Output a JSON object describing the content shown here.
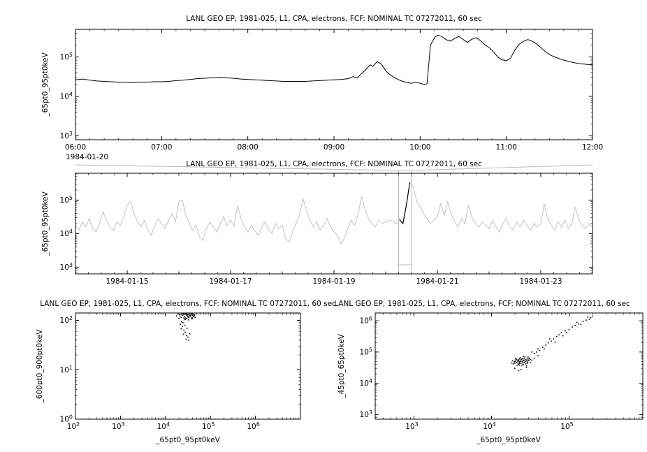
{
  "app": {
    "background": "#ffffff",
    "axis_color": "#000000",
    "context_frame_color": "#b9b9b9"
  },
  "chart_data": [
    {
      "type": "line",
      "title": "LANL GEO EP, 1981-025, L1, CPA, electrons, FCF: NOMINAL TC 07272011, 60 sec",
      "ylabel": "_65pt0_95pt0keV",
      "x_context_label": "1984-01-20",
      "x_unit": "time of day (hours)",
      "y_scale": "log10",
      "xlim": [
        6,
        12
      ],
      "ylim_log10": [
        2.9,
        5.7
      ],
      "x_ticks": {
        "values": [
          6,
          7,
          8,
          9,
          10,
          11,
          12
        ],
        "labels": [
          "06:00",
          "07:00",
          "08:00",
          "09:00",
          "10:00",
          "11:00",
          "12:00"
        ]
      },
      "x_minor_step": 0.1666667,
      "y_tick_exponents": [
        3,
        4,
        5
      ],
      "line_color": "#000000",
      "points": [
        [
          6.0,
          4.42
        ],
        [
          6.08,
          4.44
        ],
        [
          6.17,
          4.41
        ],
        [
          6.25,
          4.39
        ],
        [
          6.33,
          4.38
        ],
        [
          6.42,
          4.37
        ],
        [
          6.5,
          4.36
        ],
        [
          6.58,
          4.36
        ],
        [
          6.67,
          4.35
        ],
        [
          6.75,
          4.36
        ],
        [
          6.83,
          4.36
        ],
        [
          6.92,
          4.37
        ],
        [
          7.0,
          4.37
        ],
        [
          7.08,
          4.38
        ],
        [
          7.17,
          4.4
        ],
        [
          7.25,
          4.41
        ],
        [
          7.33,
          4.43
        ],
        [
          7.42,
          4.45
        ],
        [
          7.5,
          4.46
        ],
        [
          7.58,
          4.47
        ],
        [
          7.67,
          4.48
        ],
        [
          7.75,
          4.47
        ],
        [
          7.83,
          4.46
        ],
        [
          7.92,
          4.44
        ],
        [
          8.0,
          4.43
        ],
        [
          8.08,
          4.42
        ],
        [
          8.17,
          4.41
        ],
        [
          8.25,
          4.4
        ],
        [
          8.33,
          4.39
        ],
        [
          8.42,
          4.38
        ],
        [
          8.5,
          4.38
        ],
        [
          8.58,
          4.38
        ],
        [
          8.67,
          4.38
        ],
        [
          8.75,
          4.39
        ],
        [
          8.83,
          4.4
        ],
        [
          8.92,
          4.41
        ],
        [
          9.0,
          4.42
        ],
        [
          9.08,
          4.43
        ],
        [
          9.17,
          4.45
        ],
        [
          9.22,
          4.5
        ],
        [
          9.27,
          4.47
        ],
        [
          9.32,
          4.58
        ],
        [
          9.37,
          4.68
        ],
        [
          9.42,
          4.8
        ],
        [
          9.45,
          4.76
        ],
        [
          9.5,
          4.88
        ],
        [
          9.55,
          4.82
        ],
        [
          9.6,
          4.65
        ],
        [
          9.65,
          4.55
        ],
        [
          9.7,
          4.48
        ],
        [
          9.75,
          4.42
        ],
        [
          9.8,
          4.38
        ],
        [
          9.85,
          4.35
        ],
        [
          9.9,
          4.33
        ],
        [
          9.95,
          4.36
        ],
        [
          10.0,
          4.33
        ],
        [
          10.05,
          4.3
        ],
        [
          10.08,
          4.32
        ],
        [
          10.12,
          5.3
        ],
        [
          10.17,
          5.5
        ],
        [
          10.2,
          5.55
        ],
        [
          10.25,
          5.52
        ],
        [
          10.3,
          5.44
        ],
        [
          10.35,
          5.4
        ],
        [
          10.4,
          5.47
        ],
        [
          10.45,
          5.52
        ],
        [
          10.5,
          5.44
        ],
        [
          10.55,
          5.37
        ],
        [
          10.6,
          5.45
        ],
        [
          10.65,
          5.49
        ],
        [
          10.7,
          5.41
        ],
        [
          10.75,
          5.31
        ],
        [
          10.8,
          5.24
        ],
        [
          10.85,
          5.13
        ],
        [
          10.9,
          5.0
        ],
        [
          10.95,
          4.93
        ],
        [
          11.0,
          4.9
        ],
        [
          11.05,
          4.97
        ],
        [
          11.1,
          5.18
        ],
        [
          11.15,
          5.32
        ],
        [
          11.2,
          5.4
        ],
        [
          11.25,
          5.44
        ],
        [
          11.3,
          5.4
        ],
        [
          11.35,
          5.33
        ],
        [
          11.4,
          5.24
        ],
        [
          11.45,
          5.14
        ],
        [
          11.5,
          5.06
        ],
        [
          11.55,
          5.01
        ],
        [
          11.6,
          4.97
        ],
        [
          11.65,
          4.93
        ],
        [
          11.7,
          4.9
        ],
        [
          11.75,
          4.87
        ],
        [
          11.8,
          4.85
        ],
        [
          11.85,
          4.83
        ],
        [
          11.9,
          4.82
        ],
        [
          11.95,
          4.81
        ],
        [
          12.0,
          4.8
        ]
      ]
    },
    {
      "type": "line",
      "title": "LANL GEO EP, 1981-025, L1, CPA, electrons, FCF: NOMINAL TC 07272011, 60 sec",
      "ylabel": "_65pt0_95pt0keV",
      "x_unit": "day of 1984-01",
      "y_scale": "log10",
      "xlim": [
        14,
        24
      ],
      "ylim_log10": [
        2.8,
        5.8
      ],
      "x_ticks": {
        "values": [
          15,
          17,
          19,
          21,
          23
        ],
        "labels": [
          "1984-01-15",
          "1984-01-17",
          "1984-01-19",
          "1984-01-21",
          "1984-01-23"
        ]
      },
      "x_minor_tick_values": [
        14,
        16,
        18,
        20,
        22,
        24
      ],
      "x_minor_step": 0.25,
      "y_tick_exponents": [
        3,
        4,
        5
      ],
      "line_color": "#c3c3c3",
      "highlight": {
        "x0": 20.25,
        "x1": 20.5,
        "color": "#000000",
        "frame_color": "#b9b9b9"
      },
      "x_start": 14,
      "x_step": 0.0666667,
      "values_log10": [
        4.25,
        4.1,
        4.35,
        4.2,
        4.45,
        4.15,
        4.05,
        4.3,
        4.65,
        4.4,
        4.2,
        4.1,
        4.35,
        4.25,
        4.5,
        4.85,
        4.95,
        4.6,
        4.35,
        4.2,
        4.4,
        4.1,
        3.95,
        4.25,
        4.45,
        4.3,
        4.15,
        4.4,
        4.6,
        4.35,
        4.95,
        5.0,
        4.55,
        4.3,
        4.1,
        4.25,
        3.9,
        3.8,
        4.15,
        4.35,
        4.2,
        4.05,
        4.3,
        4.5,
        4.25,
        4.4,
        4.2,
        4.85,
        4.45,
        4.2,
        4.05,
        4.25,
        4.1,
        3.95,
        4.2,
        4.35,
        4.15,
        4.0,
        4.3,
        4.15,
        4.25,
        3.85,
        3.75,
        4.05,
        4.3,
        4.55,
        5.05,
        4.7,
        4.4,
        4.2,
        4.35,
        4.1,
        4.25,
        4.45,
        4.2,
        4.05,
        3.95,
        3.7,
        3.85,
        4.15,
        4.4,
        4.25,
        4.6,
        5.1,
        4.75,
        4.45,
        4.3,
        4.2,
        4.4,
        4.3,
        4.35,
        4.4,
        4.38,
        4.3,
        4.42,
        4.3,
        4.85,
        5.52,
        5.4,
        4.95,
        4.8,
        4.6,
        4.45,
        4.3,
        4.4,
        4.5,
        4.9,
        4.55,
        4.95,
        4.6,
        4.35,
        4.2,
        4.45,
        4.3,
        4.85,
        4.5,
        4.3,
        4.2,
        4.35,
        4.25,
        4.15,
        4.4,
        4.2,
        4.05,
        4.3,
        4.45,
        4.2,
        4.1,
        4.35,
        4.2,
        4.4,
        4.25,
        4.1,
        4.3,
        4.2,
        4.3,
        4.9,
        4.45,
        4.25,
        4.1,
        4.35,
        4.2,
        4.4,
        4.15,
        4.3,
        4.8,
        4.4,
        4.25,
        4.15,
        4.3,
        4.2
      ]
    },
    {
      "type": "scatter",
      "title": "LANL GEO EP, 1981-025, L1, CPA, electrons, FCF: NOMINAL TC 07272011, 60 sec",
      "xlabel": "_65pt0_95pt0keV",
      "ylabel": "_600pt0_900pt0keV",
      "x_scale": "log10",
      "y_scale": "log10",
      "xlim_log10": [
        2,
        7
      ],
      "ylim_log10": [
        0,
        2.15
      ],
      "x_tick_exponents": [
        2,
        3,
        4,
        5,
        6
      ],
      "y_tick_exponents": [
        0,
        1,
        2
      ],
      "point_color": "#000000",
      "points": [
        [
          4.35,
          2.12
        ],
        [
          4.36,
          2.06
        ],
        [
          4.37,
          2.14
        ],
        [
          4.38,
          2.1
        ],
        [
          4.39,
          2.11
        ],
        [
          4.4,
          2.14
        ],
        [
          4.41,
          2.05
        ],
        [
          4.41,
          2.13
        ],
        [
          4.42,
          2.08
        ],
        [
          4.42,
          2.03
        ],
        [
          4.43,
          2.12
        ],
        [
          4.44,
          2.02
        ],
        [
          4.45,
          2.14
        ],
        [
          4.45,
          2.05
        ],
        [
          4.46,
          2.13
        ],
        [
          4.47,
          2.1
        ],
        [
          4.47,
          2.04
        ],
        [
          4.48,
          2.12
        ],
        [
          4.49,
          2.09
        ],
        [
          4.5,
          2.12
        ],
        [
          4.5,
          2.07
        ],
        [
          4.51,
          2.01
        ],
        [
          4.52,
          2.14
        ],
        [
          4.52,
          2.06
        ],
        [
          4.53,
          2.1
        ],
        [
          4.54,
          2.13
        ],
        [
          4.55,
          2.08
        ],
        [
          4.56,
          2.1
        ],
        [
          4.57,
          2.12
        ],
        [
          4.58,
          2.05
        ],
        [
          4.58,
          2.14
        ],
        [
          4.59,
          2.03
        ],
        [
          4.6,
          2.1
        ],
        [
          4.6,
          2.05
        ],
        [
          4.61,
          2.13
        ],
        [
          4.62,
          2.08
        ],
        [
          4.63,
          2.11
        ],
        [
          4.64,
          2.09
        ],
        [
          4.65,
          2.11
        ],
        [
          4.66,
          2.06
        ],
        [
          4.28,
          2.13
        ],
        [
          4.25,
          2.09
        ],
        [
          4.3,
          2.04
        ],
        [
          4.32,
          2.11
        ],
        [
          4.33,
          2.07
        ],
        [
          4.36,
          1.97
        ],
        [
          4.39,
          1.95
        ],
        [
          4.33,
          1.92
        ],
        [
          4.43,
          1.9
        ],
        [
          4.38,
          1.88
        ],
        [
          4.35,
          1.83
        ],
        [
          4.48,
          1.84
        ],
        [
          4.41,
          1.8
        ],
        [
          4.44,
          1.76
        ],
        [
          4.4,
          1.72
        ],
        [
          4.54,
          1.73
        ],
        [
          4.47,
          1.69
        ],
        [
          4.5,
          1.66
        ],
        [
          4.46,
          1.62
        ],
        [
          4.52,
          1.6
        ]
      ]
    },
    {
      "type": "scatter",
      "title": "LANL GEO EP, 1981-025, L1, CPA, electrons, FCF: NOMINAL TC 07272011, 60 sec",
      "xlabel": "_65pt0_95pt0keV",
      "ylabel": "_45pt0_65pt0keV",
      "x_scale": "log10",
      "y_scale": "log10",
      "xlim_log10": [
        2.5,
        5.95
      ],
      "ylim_log10": [
        2.85,
        6.25
      ],
      "x_tick_exponents": [
        3,
        4,
        5
      ],
      "y_tick_exponents": [
        3,
        4,
        5,
        6
      ],
      "point_color": "#000000",
      "points": [
        [
          4.26,
          4.65
        ],
        [
          4.27,
          4.72
        ],
        [
          4.28,
          4.62
        ],
        [
          4.29,
          4.68
        ],
        [
          4.3,
          4.7
        ],
        [
          4.3,
          4.64
        ],
        [
          4.31,
          4.78
        ],
        [
          4.31,
          4.71
        ],
        [
          4.32,
          4.66
        ],
        [
          4.32,
          4.77
        ],
        [
          4.33,
          4.74
        ],
        [
          4.33,
          4.58
        ],
        [
          4.34,
          4.69
        ],
        [
          4.34,
          4.64
        ],
        [
          4.35,
          4.6
        ],
        [
          4.35,
          4.72
        ],
        [
          4.35,
          4.75
        ],
        [
          4.36,
          4.68
        ],
        [
          4.36,
          4.78
        ],
        [
          4.36,
          4.63
        ],
        [
          4.37,
          4.82
        ],
        [
          4.37,
          4.71
        ],
        [
          4.38,
          4.76
        ],
        [
          4.38,
          4.64
        ],
        [
          4.38,
          4.7
        ],
        [
          4.39,
          4.58
        ],
        [
          4.39,
          4.77
        ],
        [
          4.4,
          4.7
        ],
        [
          4.4,
          4.8
        ],
        [
          4.4,
          4.65
        ],
        [
          4.41,
          4.6
        ],
        [
          4.41,
          4.73
        ],
        [
          4.42,
          4.66
        ],
        [
          4.42,
          4.74
        ],
        [
          4.42,
          4.8
        ],
        [
          4.43,
          4.84
        ],
        [
          4.43,
          4.68
        ],
        [
          4.44,
          4.7
        ],
        [
          4.44,
          4.62
        ],
        [
          4.44,
          4.76
        ],
        [
          4.45,
          4.56
        ],
        [
          4.45,
          4.74
        ],
        [
          4.46,
          4.78
        ],
        [
          4.46,
          4.68
        ],
        [
          4.46,
          4.64
        ],
        [
          4.47,
          4.84
        ],
        [
          4.47,
          4.72
        ],
        [
          4.48,
          4.72
        ],
        [
          4.48,
          4.78
        ],
        [
          4.49,
          4.8
        ],
        [
          4.5,
          4.66
        ],
        [
          4.5,
          4.76
        ],
        [
          4.52,
          4.74
        ],
        [
          4.36,
          4.58
        ],
        [
          4.41,
          4.86
        ],
        [
          4.3,
          4.48
        ],
        [
          4.38,
          4.44
        ],
        [
          4.45,
          4.5
        ],
        [
          4.35,
          4.4
        ],
        [
          4.55,
          4.8
        ],
        [
          4.6,
          4.88
        ],
        [
          4.52,
          5.0
        ],
        [
          4.55,
          4.95
        ],
        [
          4.58,
          5.0
        ],
        [
          4.6,
          5.1
        ],
        [
          4.62,
          5.05
        ],
        [
          4.66,
          5.15
        ],
        [
          4.68,
          5.1
        ],
        [
          4.7,
          5.22
        ],
        [
          4.73,
          5.3
        ],
        [
          4.75,
          5.42
        ],
        [
          4.77,
          5.35
        ],
        [
          4.8,
          5.42
        ],
        [
          4.82,
          5.32
        ],
        [
          4.84,
          5.5
        ],
        [
          4.87,
          5.55
        ],
        [
          4.9,
          5.62
        ],
        [
          4.92,
          5.52
        ],
        [
          4.95,
          5.68
        ],
        [
          4.97,
          5.62
        ],
        [
          5.0,
          5.72
        ],
        [
          5.04,
          5.8
        ],
        [
          5.08,
          5.85
        ],
        [
          5.1,
          5.95
        ],
        [
          5.12,
          5.9
        ],
        [
          5.15,
          5.88
        ],
        [
          5.18,
          5.98
        ],
        [
          5.22,
          6.02
        ],
        [
          5.24,
          6.12
        ],
        [
          5.26,
          6.05
        ],
        [
          5.28,
          6.1
        ],
        [
          5.3,
          6.15
        ]
      ]
    }
  ]
}
